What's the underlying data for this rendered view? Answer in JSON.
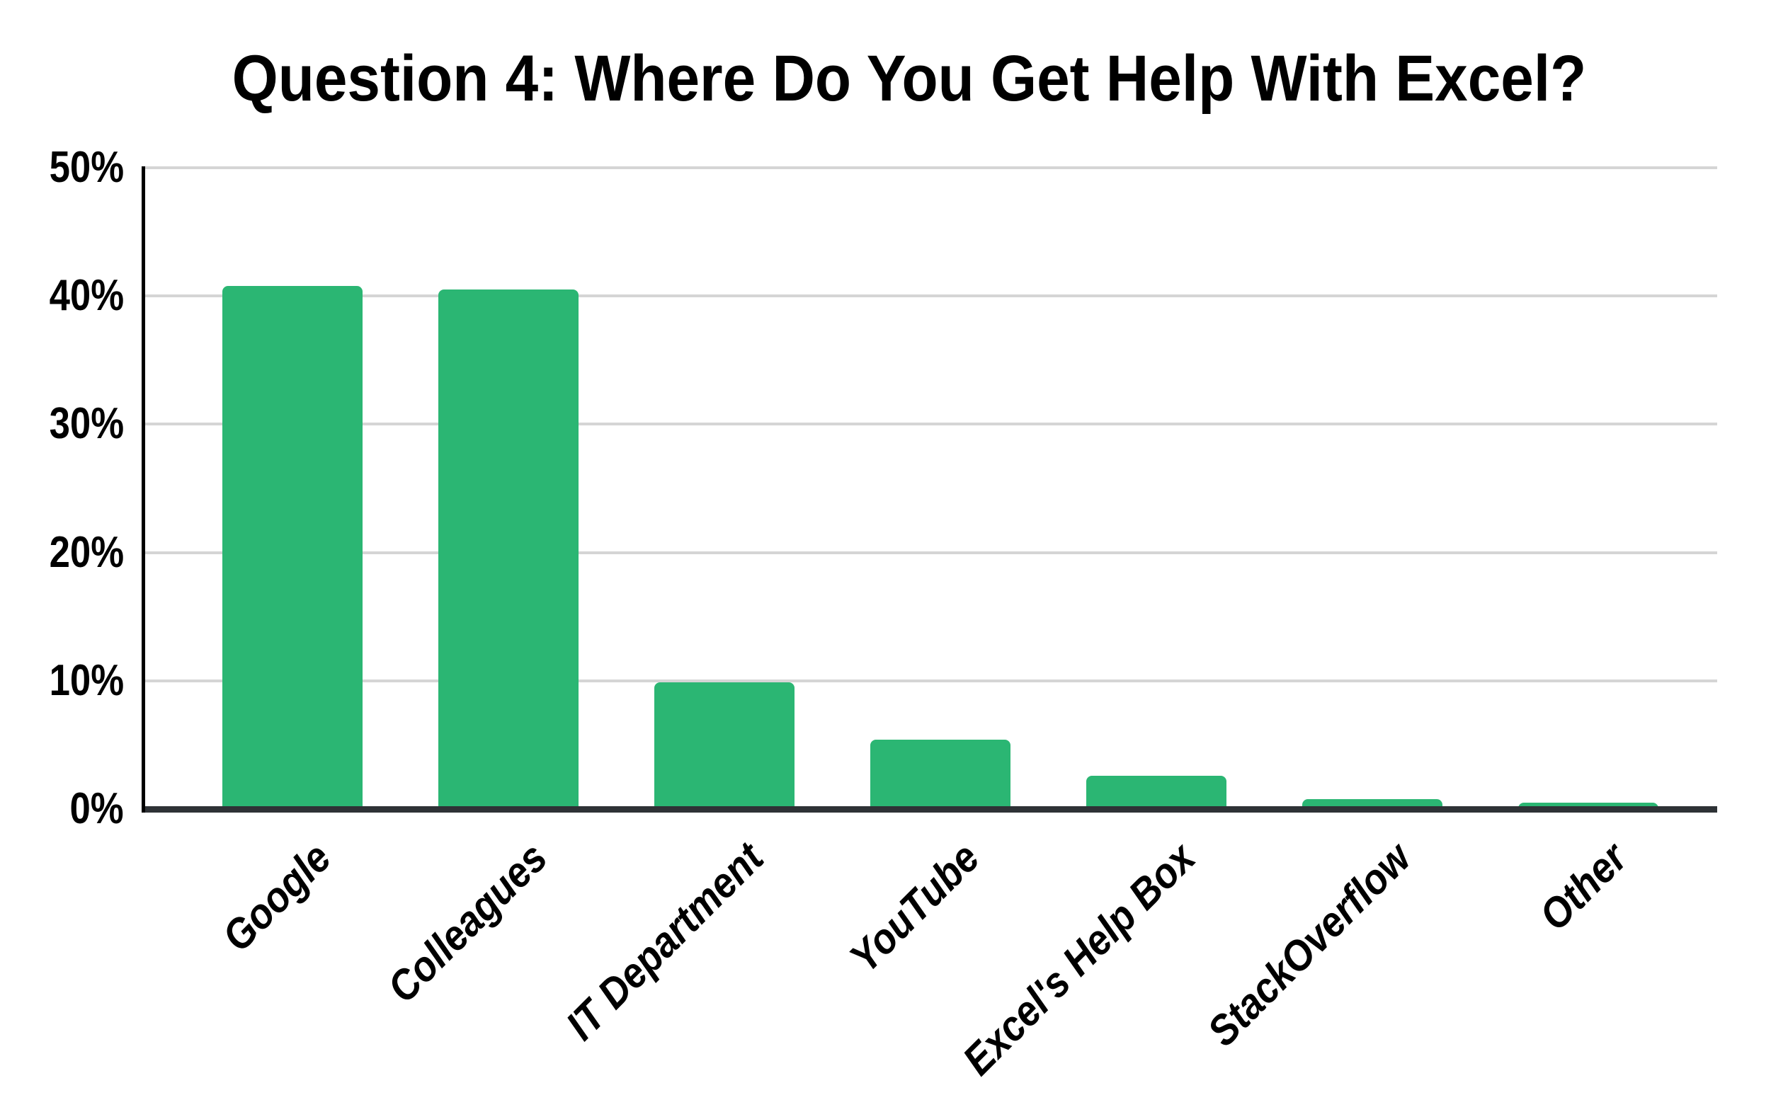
{
  "page": {
    "background_color": "#ffffff"
  },
  "chart_data": {
    "type": "bar",
    "title": "Question 4: Where Do You Get Help With Excel?",
    "categories": [
      "Google",
      "Colleagues",
      "IT Department",
      "YouTube",
      "Excel's Help Box",
      "StackOverflow",
      "Other"
    ],
    "values": [
      40.8,
      40.5,
      9.9,
      5.4,
      2.6,
      0.8,
      0.5
    ],
    "value_unit": "%",
    "xlabel": "",
    "ylabel": "",
    "ylim": [
      0,
      50
    ],
    "y_tick_step": 10,
    "y_tick_labels": [
      "0%",
      "10%",
      "20%",
      "30%",
      "40%",
      "50%"
    ],
    "grid": true,
    "legend_position": "none",
    "x_label_rotation_deg": -45,
    "colors": {
      "bar": "#2bb673",
      "gridline": "#d5d5d5",
      "baseline": "#2e3236",
      "axis_line": "#000000",
      "text": "#000000",
      "background": "#ffffff"
    }
  }
}
